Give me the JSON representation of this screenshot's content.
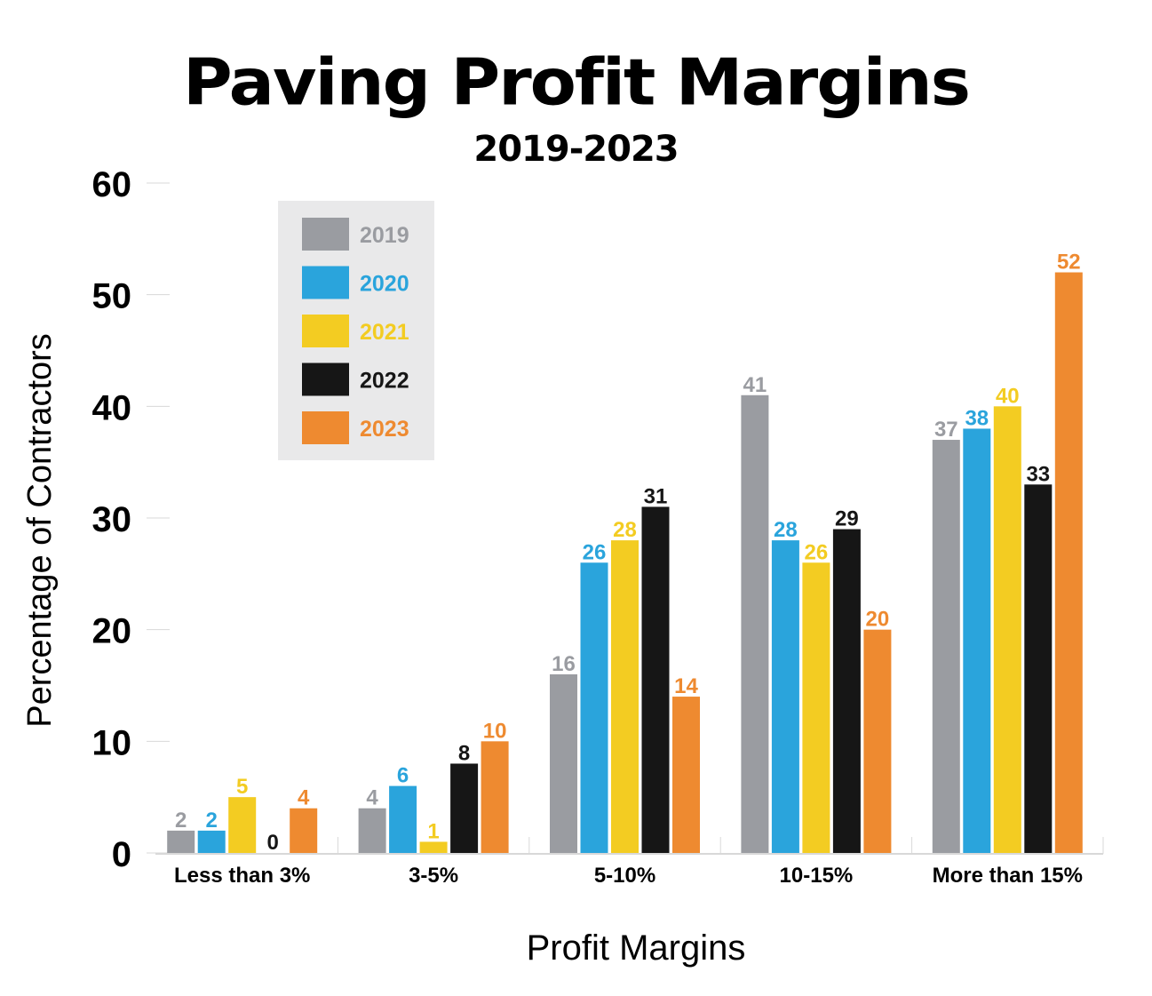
{
  "chart_data": {
    "type": "bar",
    "title": "Paving Profit Margins",
    "subtitle": "2019-2023",
    "xlabel": "Profit Margins",
    "ylabel": "Percentage of Contractors",
    "ylim": [
      0,
      60
    ],
    "yticks": [
      0,
      10,
      20,
      30,
      40,
      50,
      60
    ],
    "categories": [
      "Less than 3%",
      "3-5%",
      "5-10%",
      "10-15%",
      "More than 15%"
    ],
    "series": [
      {
        "name": "2019",
        "color": "#9a9ca1",
        "values": [
          2,
          4,
          16,
          41,
          37
        ]
      },
      {
        "name": "2020",
        "color": "#2aa4dc",
        "values": [
          2,
          6,
          26,
          28,
          38
        ]
      },
      {
        "name": "2021",
        "color": "#f3cc22",
        "values": [
          5,
          1,
          28,
          26,
          40
        ]
      },
      {
        "name": "2022",
        "color": "#161616",
        "values": [
          0,
          8,
          31,
          29,
          33
        ]
      },
      {
        "name": "2023",
        "color": "#ee8a30",
        "values": [
          4,
          10,
          14,
          20,
          52
        ]
      }
    ],
    "legend_position": "top-left",
    "grid": false
  }
}
